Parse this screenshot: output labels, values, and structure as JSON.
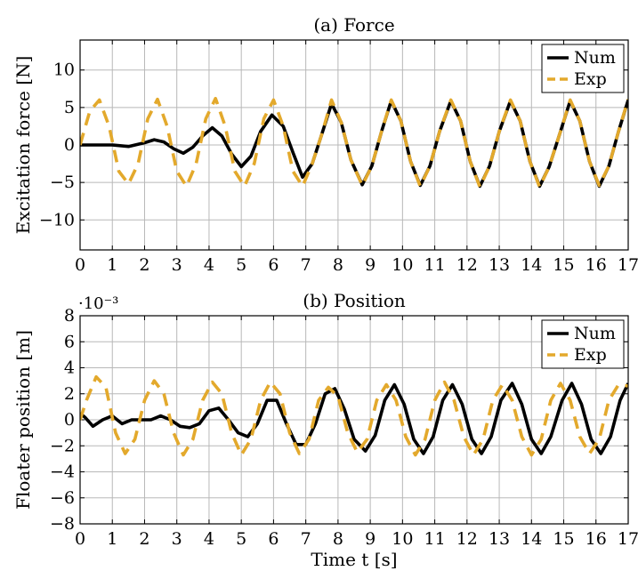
{
  "chart_data": [
    {
      "type": "line",
      "title": "(a) Force",
      "xlabel": "",
      "ylabel": "Excitation force [N]",
      "xlim": [
        0,
        17
      ],
      "ylim": [
        -14,
        14
      ],
      "x_ticks": [
        0,
        1,
        2,
        3,
        4,
        5,
        6,
        7,
        8,
        9,
        10,
        11,
        12,
        13,
        14,
        15,
        16,
        17
      ],
      "y_ticks": [
        -10,
        -5,
        0,
        5,
        10
      ],
      "grid": true,
      "legend_position": "top-right",
      "series": [
        {
          "name": "Num",
          "color": "#000000",
          "style": "solid",
          "x": [
            0,
            0.5,
            1.0,
            1.5,
            2.0,
            2.3,
            2.6,
            2.9,
            3.2,
            3.5,
            3.8,
            4.1,
            4.4,
            4.7,
            5.0,
            5.3,
            5.6,
            5.95,
            6.3,
            6.6,
            6.9,
            7.2,
            7.5,
            7.8,
            8.1,
            8.4,
            8.75,
            9.05,
            9.35,
            9.65,
            9.95,
            10.25,
            10.55,
            10.85,
            11.15,
            11.5,
            11.8,
            12.1,
            12.4,
            12.7,
            13.0,
            13.35,
            13.65,
            13.95,
            14.25,
            14.55,
            14.9,
            15.2,
            15.5,
            15.8,
            16.1,
            16.4,
            16.7,
            17.0
          ],
          "y": [
            0,
            0,
            0,
            -0.2,
            0.3,
            0.7,
            0.4,
            -0.5,
            -1.1,
            -0.3,
            1.2,
            2.3,
            1.2,
            -1.2,
            -2.9,
            -1.5,
            1.8,
            4.0,
            2.5,
            -1.0,
            -4.3,
            -2.5,
            1.5,
            5.5,
            3.0,
            -2.0,
            -5.3,
            -2.8,
            1.8,
            5.9,
            3.2,
            -2.2,
            -5.4,
            -2.8,
            1.8,
            5.9,
            3.2,
            -2.2,
            -5.5,
            -2.8,
            1.8,
            5.9,
            3.2,
            -2.2,
            -5.5,
            -2.9,
            1.8,
            5.9,
            3.2,
            -2.2,
            -5.5,
            -2.8,
            1.8,
            6.0
          ]
        },
        {
          "name": "Exp",
          "color": "#E3A92C",
          "style": "dashed",
          "x": [
            0,
            0.3,
            0.6,
            0.9,
            1.2,
            1.5,
            1.8,
            2.1,
            2.4,
            2.7,
            3.0,
            3.3,
            3.6,
            3.9,
            4.2,
            4.5,
            4.8,
            5.1,
            5.4,
            5.7,
            6.0,
            6.3,
            6.6,
            6.9,
            7.2,
            7.5,
            7.8,
            8.1,
            8.4,
            8.75,
            9.05,
            9.35,
            9.65,
            9.95,
            10.25,
            10.55,
            10.85,
            11.15,
            11.5,
            11.8,
            12.1,
            12.4,
            12.7,
            13.0,
            13.35,
            13.65,
            13.95,
            14.25,
            14.55,
            14.9,
            15.2,
            15.5,
            15.8,
            16.1,
            16.4,
            16.7,
            17.0
          ],
          "y": [
            0,
            4.5,
            6.0,
            2.5,
            -3.5,
            -5.2,
            -2.5,
            3.5,
            6.1,
            2.5,
            -3.5,
            -5.5,
            -2.5,
            3.5,
            6.2,
            2.5,
            -3.5,
            -5.5,
            -2.5,
            3.5,
            6.0,
            2.5,
            -3.5,
            -5.5,
            -2.5,
            1.5,
            6.0,
            3.0,
            -2.0,
            -5.4,
            -2.8,
            1.8,
            6.0,
            3.2,
            -2.2,
            -5.5,
            -2.8,
            1.8,
            6.0,
            3.2,
            -2.2,
            -5.6,
            -2.8,
            1.8,
            6.0,
            3.2,
            -2.2,
            -5.6,
            -2.9,
            1.8,
            6.0,
            3.2,
            -2.2,
            -5.4,
            -2.8,
            1.8,
            6.1
          ]
        }
      ]
    },
    {
      "type": "line",
      "title": "(b) Position",
      "xlabel": "Time t [s]",
      "ylabel": "Floater position [m]",
      "y_multiplier": "·10⁻³",
      "xlim": [
        0,
        17
      ],
      "ylim": [
        -8,
        8
      ],
      "x_ticks": [
        0,
        1,
        2,
        3,
        4,
        5,
        6,
        7,
        8,
        9,
        10,
        11,
        12,
        13,
        14,
        15,
        16,
        17
      ],
      "y_ticks": [
        -8,
        -6,
        -4,
        -2,
        0,
        2,
        4,
        6,
        8
      ],
      "grid": true,
      "legend_position": "top-right",
      "series": [
        {
          "name": "Num",
          "color": "#000000",
          "style": "solid",
          "x": [
            0,
            0.15,
            0.4,
            0.7,
            1.0,
            1.3,
            1.6,
            1.9,
            2.2,
            2.5,
            2.8,
            3.1,
            3.4,
            3.7,
            4.0,
            4.3,
            4.6,
            4.9,
            5.2,
            5.5,
            5.8,
            6.1,
            6.4,
            6.7,
            7.0,
            7.3,
            7.6,
            7.9,
            8.2,
            8.5,
            8.85,
            9.15,
            9.45,
            9.75,
            10.05,
            10.35,
            10.65,
            10.95,
            11.25,
            11.55,
            11.85,
            12.15,
            12.45,
            12.75,
            13.05,
            13.4,
            13.7,
            14.0,
            14.3,
            14.6,
            14.95,
            15.25,
            15.55,
            15.85,
            16.15,
            16.45,
            16.75,
            17.0
          ],
          "y": [
            0.5,
            0.2,
            -0.5,
            0,
            0.3,
            -0.3,
            0,
            0,
            0,
            0.3,
            0,
            -0.5,
            -0.6,
            -0.3,
            0.7,
            0.9,
            0,
            -1.0,
            -1.3,
            -0.3,
            1.5,
            1.5,
            -0.3,
            -1.9,
            -1.9,
            -0.3,
            2.0,
            2.4,
            0.8,
            -1.5,
            -2.4,
            -1.2,
            1.5,
            2.7,
            1.2,
            -1.5,
            -2.6,
            -1.3,
            1.5,
            2.7,
            1.2,
            -1.5,
            -2.6,
            -1.3,
            1.5,
            2.8,
            1.2,
            -1.5,
            -2.6,
            -1.3,
            1.5,
            2.8,
            1.2,
            -1.5,
            -2.6,
            -1.3,
            1.5,
            2.8
          ]
        },
        {
          "name": "Exp",
          "color": "#E3A92C",
          "style": "dashed",
          "x": [
            0,
            0.2,
            0.5,
            0.8,
            1.1,
            1.4,
            1.7,
            2.0,
            2.3,
            2.6,
            2.9,
            3.2,
            3.5,
            3.8,
            4.1,
            4.4,
            4.7,
            5.0,
            5.3,
            5.6,
            5.9,
            6.2,
            6.5,
            6.8,
            7.1,
            7.4,
            7.7,
            8.0,
            8.3,
            8.6,
            8.9,
            9.2,
            9.5,
            9.8,
            10.1,
            10.4,
            10.7,
            11.0,
            11.3,
            11.6,
            11.9,
            12.2,
            12.5,
            12.8,
            13.1,
            13.4,
            13.7,
            14.0,
            14.3,
            14.6,
            14.9,
            15.2,
            15.5,
            15.8,
            16.1,
            16.4,
            16.7,
            17.0
          ],
          "y": [
            0,
            1.5,
            3.3,
            2.5,
            -1.0,
            -2.6,
            -1.5,
            1.5,
            3.0,
            2.0,
            -1.0,
            -2.7,
            -1.5,
            1.5,
            2.9,
            2.0,
            -1.0,
            -2.7,
            -1.5,
            1.5,
            2.9,
            2.0,
            -1.0,
            -2.6,
            -1.5,
            1.5,
            2.5,
            1.8,
            -1.0,
            -2.5,
            -1.5,
            1.5,
            2.7,
            1.5,
            -1.3,
            -2.7,
            -1.5,
            1.5,
            2.9,
            1.5,
            -1.3,
            -2.7,
            -1.5,
            1.5,
            2.7,
            1.5,
            -1.3,
            -2.7,
            -1.5,
            1.5,
            2.8,
            1.5,
            -1.3,
            -2.6,
            -1.5,
            1.5,
            2.7,
            2.6
          ]
        }
      ]
    }
  ]
}
